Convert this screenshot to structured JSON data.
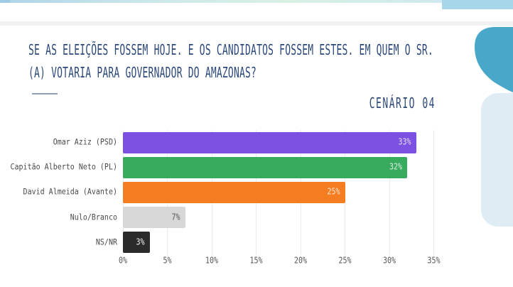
{
  "header": {
    "title_lines": [
      "SE AS ELEIÇÕES FOSSEM HOJE. E OS CANDIDATOS FOSSEM ESTES. EM QUEM O SR.",
      "(A) VOTARIA PARA GOVERNADOR DO AMAZONAS?"
    ],
    "scenario_label": "CENÁRIO 04"
  },
  "chart_data": {
    "type": "bar",
    "orientation": "horizontal",
    "title": "SE AS ELEIÇÕES FOSSEM HOJE. E OS CANDIDATOS FOSSEM ESTES. EM QUEM O SR. (A) VOTARIA PARA GOVERNADOR DO AMAZONAS?",
    "subtitle": "CENÁRIO 04",
    "categories": [
      "Omar Aziz (PSD)",
      "Capitão Alberto Neto (PL)",
      "David Almeida (Avante)",
      "Nulo/Branco",
      "NS/NR"
    ],
    "values": [
      33,
      32,
      25,
      7,
      3
    ],
    "value_labels": [
      "33%",
      "32%",
      "25%",
      "7%",
      "3%"
    ],
    "bar_colors": [
      "#7c50e0",
      "#38ab5f",
      "#f57d21",
      "#d7d7d7",
      "#2b2b2b"
    ],
    "value_label_colors": [
      "#ffffffcc",
      "#ffffffcc",
      "#ffffffcc",
      "#5a5a5a",
      "#f0f0f0"
    ],
    "x_ticks": [
      "0%",
      "5%",
      "10%",
      "15%",
      "20%",
      "25%",
      "30%",
      "35%"
    ],
    "xlim": [
      0,
      35
    ],
    "xlabel": "",
    "ylabel": "",
    "grid": true,
    "legend": "none"
  },
  "theme": {
    "title_color": "#2c4879",
    "accent_teal": "#49a8ca",
    "pale_blue": "#dfecf4",
    "topbar_blue": "#a6d6e8",
    "grid_color": "#ececec"
  }
}
